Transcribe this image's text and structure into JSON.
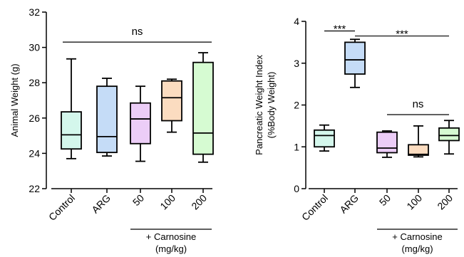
{
  "chart_data": [
    {
      "type": "boxplot",
      "ylabel": "Animal Weight (g)",
      "ylim": [
        22,
        32
      ],
      "yticks": [
        22,
        24,
        26,
        28,
        30,
        32
      ],
      "categories": [
        "Control",
        "ARG",
        "50",
        "100",
        "200"
      ],
      "boxes": [
        {
          "category": "Control",
          "min": 23.7,
          "q1": 24.25,
          "median": 25.05,
          "q3": 26.35,
          "max": 29.35,
          "color": "#d4f7ec"
        },
        {
          "category": "ARG",
          "min": 23.85,
          "q1": 24.05,
          "median": 24.95,
          "q3": 27.8,
          "max": 28.25,
          "color": "#c5dcf7"
        },
        {
          "category": "50",
          "min": 23.55,
          "q1": 24.55,
          "median": 25.95,
          "q3": 26.85,
          "max": 27.8,
          "color": "#eccdf7"
        },
        {
          "category": "100",
          "min": 25.2,
          "q1": 25.85,
          "median": 27.15,
          "q3": 28.1,
          "max": 28.2,
          "color": "#fbdcc0"
        },
        {
          "category": "200",
          "min": 23.5,
          "q1": 23.95,
          "median": 25.15,
          "q3": 29.15,
          "max": 29.7,
          "color": "#d6fbd2"
        }
      ],
      "annotations": [
        {
          "label": "ns",
          "from": "Control",
          "to": "200",
          "y": 30.3
        }
      ],
      "group_label": {
        "text": "+ Carnosine",
        "line2": "(mg/kg)",
        "from": "50",
        "to": "200"
      }
    },
    {
      "type": "boxplot",
      "ylabel_line1": "Pancreatic Weight Index",
      "ylabel_line2": "(%Body Weight)",
      "ylim": [
        0,
        4
      ],
      "yticks": [
        0,
        1,
        2,
        3,
        4
      ],
      "categories": [
        "Control",
        "ARG",
        "50",
        "100",
        "200"
      ],
      "boxes": [
        {
          "category": "Control",
          "min": 0.9,
          "q1": 1.0,
          "median": 1.27,
          "q3": 1.4,
          "max": 1.52,
          "color": "#d4f7ec"
        },
        {
          "category": "ARG",
          "min": 2.42,
          "q1": 2.74,
          "median": 3.08,
          "q3": 3.5,
          "max": 3.57,
          "color": "#c5dcf7"
        },
        {
          "category": "50",
          "min": 0.75,
          "q1": 0.86,
          "median": 0.97,
          "q3": 1.35,
          "max": 1.38,
          "color": "#eccdf7"
        },
        {
          "category": "100",
          "min": 0.76,
          "q1": 0.8,
          "median": 0.82,
          "q3": 1.05,
          "max": 1.5,
          "color": "#fbdcc0"
        },
        {
          "category": "200",
          "min": 0.83,
          "q1": 1.15,
          "median": 1.27,
          "q3": 1.45,
          "max": 1.63,
          "color": "#d6fbd2"
        }
      ],
      "annotations": [
        {
          "label": "***",
          "from": "Control",
          "to": "ARG",
          "y": 3.77
        },
        {
          "label": "***",
          "from": "ARG",
          "to": "200",
          "y": 3.65
        },
        {
          "label": "ns",
          "from": "50",
          "to": "200",
          "y": 1.77
        }
      ],
      "group_label": {
        "text": "+ Carnosine",
        "line2": "(mg/kg)",
        "from": "50",
        "to": "200"
      }
    }
  ]
}
